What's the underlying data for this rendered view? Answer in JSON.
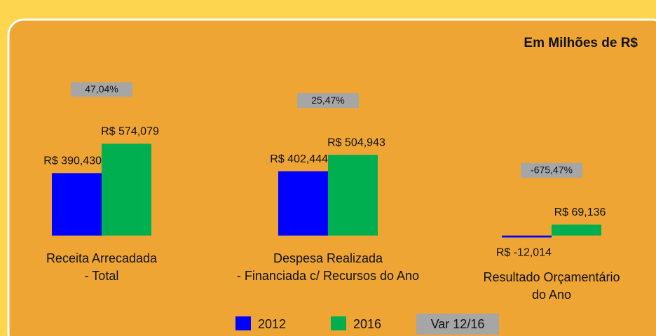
{
  "chart_data": {
    "type": "bar",
    "title": "Em Milhões de R$",
    "categories": [
      [
        "Receita Arrecadada",
        "- Total"
      ],
      [
        "Despesa Realizada",
        "- Financiada c/ Recursos do Ano"
      ],
      [
        "Resultado Orçamentário",
        "do Ano"
      ]
    ],
    "series": [
      {
        "name": "2012",
        "color": "#0000ff",
        "values": [
          390.43,
          402.444,
          -12.014
        ],
        "value_labels": [
          "R$ 390,430",
          "R$ 402,444",
          "R$ -12,014"
        ]
      },
      {
        "name": "2016",
        "color": "#00b050",
        "values": [
          574.079,
          504.943,
          69.136
        ],
        "value_labels": [
          "R$ 574,079",
          "R$ 504,943",
          "R$ 69,136"
        ]
      }
    ],
    "var_name": "Var 12/16",
    "var_color": "#a6a6a6",
    "var_labels": [
      "47,04%",
      "25,47%",
      "-675,47%"
    ],
    "ylim": [
      -50,
      1000
    ]
  }
}
